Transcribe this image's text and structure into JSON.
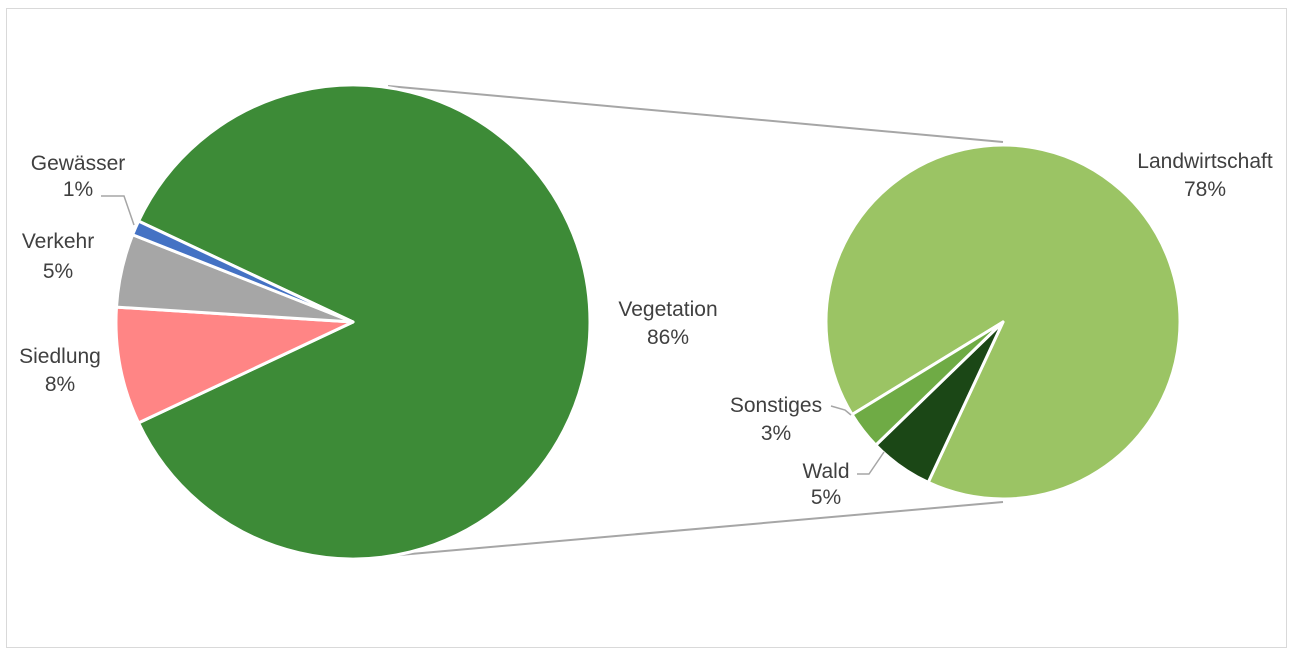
{
  "chart_data": {
    "type": "pie",
    "subtype": "pie-of-pie",
    "title": "",
    "main_pie": {
      "slices": [
        {
          "label": "Vegetation",
          "value_label": "86%",
          "value": 86,
          "color": "#3d8b37"
        },
        {
          "label": "Siedlung",
          "value_label": "8%",
          "value": 8,
          "color": "#ff8585"
        },
        {
          "label": "Verkehr",
          "value_label": "5%",
          "value": 5,
          "color": "#a6a6a6"
        },
        {
          "label": "Gewässer",
          "value_label": "1%",
          "value": 1,
          "color": "#4472c4"
        }
      ]
    },
    "secondary_pie": {
      "breakdown_of": "Vegetation",
      "slices": [
        {
          "label": "Landwirtschaft",
          "value_label": "78%",
          "value": 78,
          "color": "#9bc464"
        },
        {
          "label": "Wald",
          "value_label": "5%",
          "value": 5,
          "color": "#1b4716"
        },
        {
          "label": "Sonstiges",
          "value_label": "3%",
          "value": 3,
          "color": "#6fab45"
        }
      ]
    }
  }
}
